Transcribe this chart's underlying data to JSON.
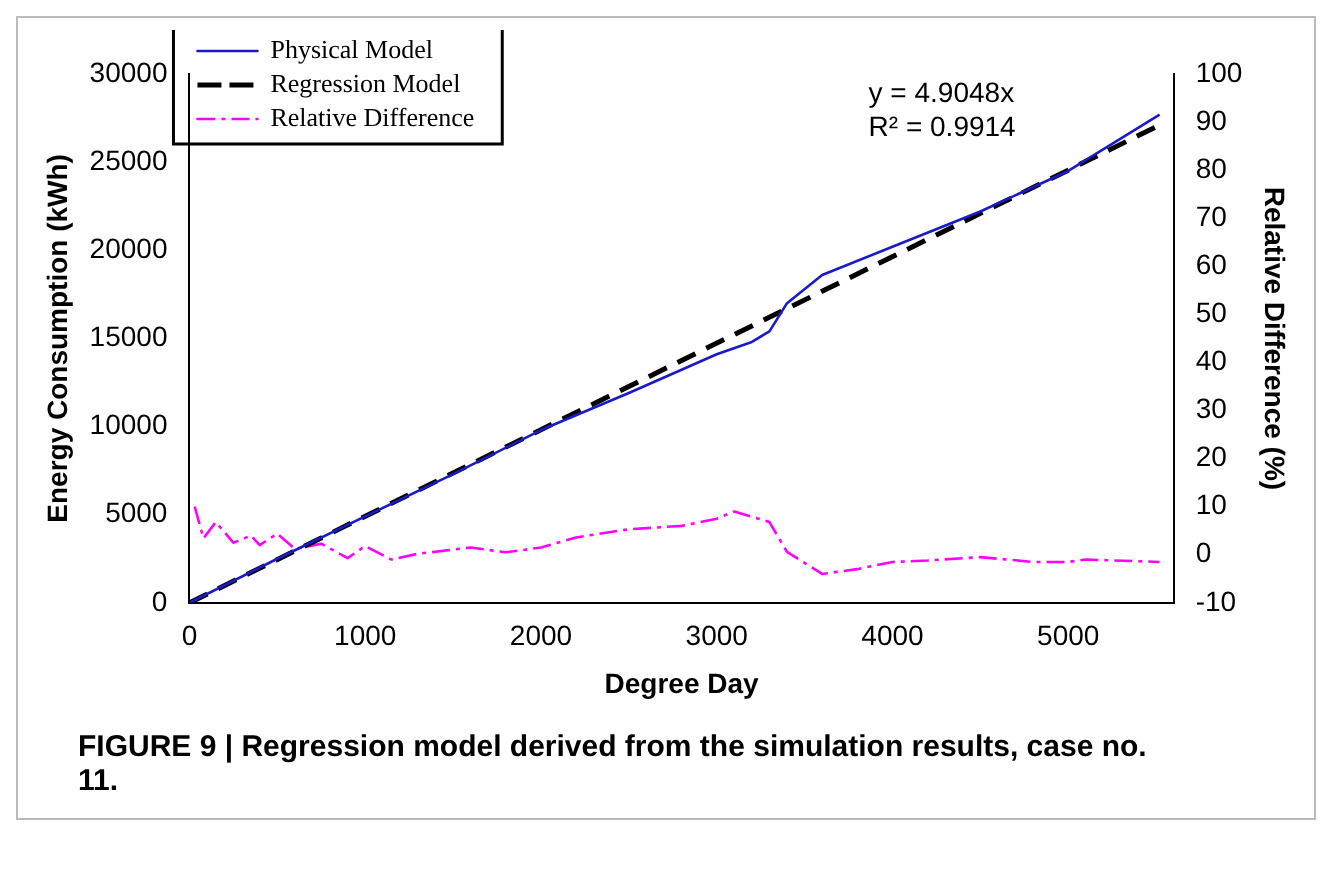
{
  "chart_data": {
    "type": "line",
    "xlabel": "Degree Day",
    "ylabel": "Energy Consumption (kWh)",
    "y2label": "Relative Difference (%)",
    "xlim": [
      0,
      5600
    ],
    "xticks": [
      0,
      1000,
      2000,
      3000,
      4000,
      5000
    ],
    "ylim": [
      0,
      30000
    ],
    "yticks": [
      0,
      5000,
      10000,
      15000,
      20000,
      25000,
      30000
    ],
    "y2lim": [
      -10,
      100
    ],
    "y2ticks": [
      -10,
      0,
      10,
      20,
      30,
      40,
      50,
      60,
      70,
      80,
      90,
      100
    ],
    "grid": false,
    "legend": "top left",
    "marker": "none",
    "series": [
      {
        "name": "Physical Model",
        "color": "#1a1ac8",
        "line_style": "solid",
        "x": [
          0,
          500,
          1000,
          1500,
          2000,
          2500,
          3000,
          3200,
          3300,
          3400,
          3600,
          4000,
          4500,
          5000,
          5520
        ],
        "values": [
          0,
          2500,
          4900,
          7300,
          9800,
          11900,
          14100,
          14800,
          15400,
          17000,
          18600,
          20200,
          22200,
          24500,
          27700
        ]
      },
      {
        "name": "Regression Model",
        "color": "#000000",
        "line_style": "dashed",
        "x": [
          0,
          5520
        ],
        "values": [
          0,
          27100
        ]
      },
      {
        "name": "Relative Difference",
        "color": "#ff00ff",
        "line_style": "dashed",
        "axis": "y2",
        "x": [
          30,
          80,
          150,
          250,
          350,
          400,
          500,
          600,
          750,
          900,
          1000,
          1150,
          1300,
          1600,
          1800,
          2000,
          2200,
          2500,
          2800,
          3000,
          3100,
          3300,
          3400,
          3600,
          3800,
          4000,
          4200,
          4500,
          4800,
          5000,
          5100,
          5520
        ],
        "values": [
          10,
          3.4,
          6.8,
          2.5,
          4,
          2,
          4.4,
          1.2,
          2.3,
          -0.7,
          1.8,
          -1,
          0.2,
          1.5,
          0.5,
          1.5,
          3.6,
          5.3,
          6,
          7.5,
          9,
          6.8,
          0.6,
          -4,
          -3,
          -1.5,
          -1.2,
          -0.5,
          -1.5,
          -1.5,
          -1,
          -1.5
        ]
      }
    ],
    "annotations": [
      "y = 4.9048x",
      "R² = 0.9914",
      "FIGURE 9 | Regression model derived from the simulation results, case no. 11."
    ]
  }
}
